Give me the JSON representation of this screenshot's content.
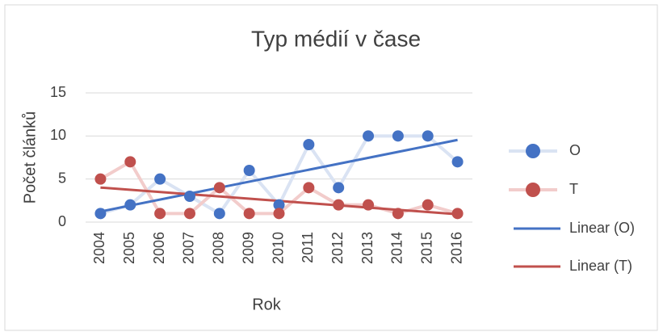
{
  "chart_data": {
    "type": "line",
    "title": "Typ médií v čase",
    "x_label": "Rok",
    "y_label": "Počet článků",
    "categories": [
      "2004",
      "2005",
      "2006",
      "2007",
      "2008",
      "2009",
      "2010",
      "2011",
      "2012",
      "2013",
      "2014",
      "2015",
      "2016"
    ],
    "series": [
      {
        "name": "O",
        "color": "#4472c4",
        "line_color": "#dae3f3",
        "values": [
          1,
          2,
          5,
          3,
          1,
          6,
          2,
          9,
          4,
          10,
          10,
          10,
          7
        ]
      },
      {
        "name": "T",
        "color": "#c0504d",
        "line_color": "#f2cccb",
        "values": [
          5,
          7,
          1,
          1,
          4,
          1,
          1,
          4,
          2,
          2,
          1,
          2,
          1
        ]
      }
    ],
    "trendlines": [
      {
        "name": "Linear (O)",
        "series": 0,
        "color": "#4472c4"
      },
      {
        "name": "Linear (T)",
        "series": 1,
        "color": "#c0504d"
      }
    ],
    "ylim": [
      0,
      15
    ],
    "yticks": [
      0,
      5,
      10,
      15
    ],
    "grid": true,
    "legend": "right"
  }
}
